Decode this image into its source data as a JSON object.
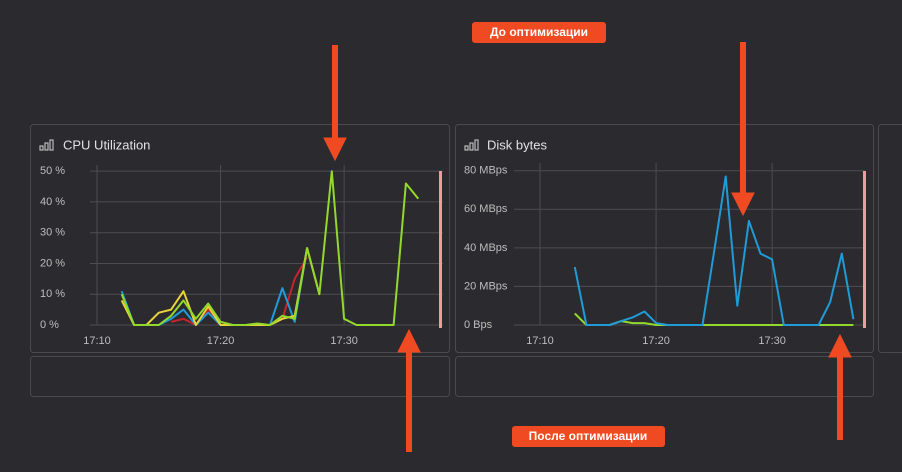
{
  "annotations": [
    "До оптимизации",
    "После оптимизации"
  ],
  "chart_data": [
    {
      "type": "line",
      "title": "CPU Utilization",
      "x": [
        "17:12",
        "17:13",
        "17:14",
        "17:15",
        "17:16",
        "17:17",
        "17:18",
        "17:19",
        "17:20",
        "17:21",
        "17:22",
        "17:23",
        "17:24",
        "17:25",
        "17:26",
        "17:27",
        "17:28",
        "17:29",
        "17:30",
        "17:31",
        "17:32",
        "17:33",
        "17:34",
        "17:35",
        "17:36"
      ],
      "series": [
        {
          "color": "#c8232c",
          "values": [
            null,
            null,
            null,
            null,
            1,
            2,
            0,
            5,
            0,
            null,
            null,
            null,
            null,
            2,
            15,
            22,
            null,
            null,
            null,
            null,
            null,
            null,
            null,
            null,
            null
          ]
        },
        {
          "color": "#1f9bd7",
          "values": [
            11,
            0,
            0,
            0,
            2,
            5,
            0,
            4,
            0,
            0,
            0,
            0,
            0,
            12,
            1,
            25,
            null,
            null,
            null,
            null,
            null,
            null,
            null,
            null,
            null
          ]
        },
        {
          "color": "#e8d33a",
          "values": [
            8,
            0,
            0,
            4,
            5,
            11,
            0,
            6,
            0,
            0,
            0,
            0,
            0,
            2,
            3,
            25,
            10,
            null,
            null,
            null,
            null,
            null,
            null,
            null,
            null
          ]
        },
        {
          "color": "#93d92c",
          "values": [
            10,
            0,
            0,
            0,
            3,
            8,
            2,
            7,
            1,
            0,
            0,
            0.5,
            0,
            3,
            2,
            25,
            10,
            50,
            2,
            0,
            0,
            0,
            0,
            46,
            41
          ]
        }
      ],
      "xlim": [
        "17:10",
        "17:38"
      ],
      "xticks": [
        "17:10",
        "17:20",
        "17:30"
      ],
      "ylim": [
        0,
        52
      ],
      "yticks": [
        {
          "value": 0,
          "label": "0 %"
        },
        {
          "value": 10,
          "label": "10 %"
        },
        {
          "value": 20,
          "label": "20 %"
        },
        {
          "value": 30,
          "label": "30 %"
        },
        {
          "value": 40,
          "label": "40 %"
        },
        {
          "value": 50,
          "label": "50 %"
        }
      ],
      "grid": true
    },
    {
      "type": "line",
      "title": "Disk bytes",
      "x": [
        "17:13",
        "17:14",
        "17:15",
        "17:16",
        "17:17",
        "17:18",
        "17:19",
        "17:20",
        "17:21",
        "17:22",
        "17:23",
        "17:24",
        "17:25",
        "17:26",
        "17:27",
        "17:28",
        "17:29",
        "17:30",
        "17:31",
        "17:32",
        "17:33",
        "17:34",
        "17:35",
        "17:36",
        "17:37"
      ],
      "series": [
        {
          "color": "#93d92c",
          "values": [
            6,
            0,
            0,
            0,
            2,
            1,
            1,
            0,
            0,
            0,
            0,
            0,
            0,
            0,
            0,
            0,
            0,
            0,
            0,
            0,
            0,
            0,
            0,
            0,
            0
          ]
        },
        {
          "color": "#1f9bd7",
          "values": [
            30,
            0,
            0,
            0,
            2,
            4,
            7,
            1,
            0,
            0,
            0,
            0,
            38,
            77,
            10,
            54,
            37,
            34,
            0,
            0,
            0,
            0,
            12,
            37,
            3
          ]
        }
      ],
      "xlim": [
        "17:10",
        "17:38"
      ],
      "xticks": [
        "17:10",
        "17:20",
        "17:30"
      ],
      "ylim": [
        0,
        84
      ],
      "yticks": [
        {
          "value": 0,
          "label": "0 Bps"
        },
        {
          "value": 20,
          "label": "20 MBps"
        },
        {
          "value": 40,
          "label": "40 MBps"
        },
        {
          "value": 60,
          "label": "60 MBps"
        },
        {
          "value": 80,
          "label": "80 MBps"
        }
      ],
      "grid": true
    }
  ]
}
